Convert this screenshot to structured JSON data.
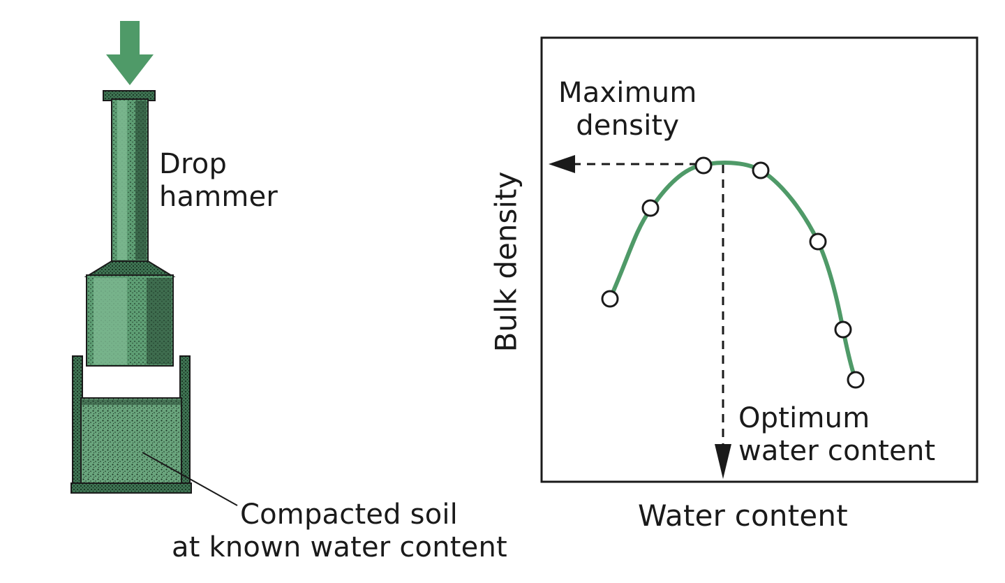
{
  "apparatus": {
    "drop_hammer_label": [
      "Drop",
      "hammer"
    ],
    "compacted_soil_label": [
      "Compacted soil",
      "at known water content"
    ]
  },
  "graph": {
    "x_axis_label": "Water content",
    "y_axis_label": "Bulk density",
    "max_density_label": [
      "Maximum",
      "density"
    ],
    "optimum_label": [
      "Optimum",
      "water content"
    ],
    "curve_color": "#4f9a68",
    "apparatus_color": "#5a9c72"
  }
}
